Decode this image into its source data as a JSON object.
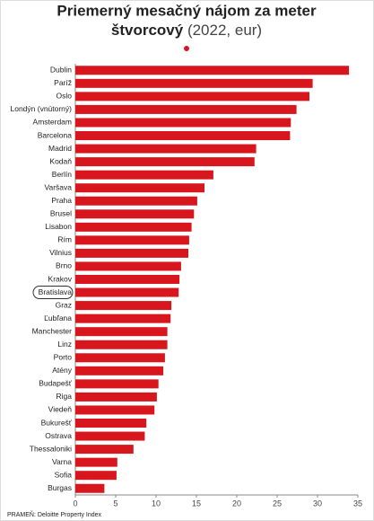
{
  "chart_data": {
    "type": "bar",
    "orientation": "horizontal",
    "title": [
      "Priemerný mesačný nájom za meter",
      "štvorcový"
    ],
    "subtitle": "(2022, eur)",
    "source": "PRAMEŇ: Deloitte Property Index",
    "categories": [
      "Dublin",
      "Paríž",
      "Oslo",
      "Londýn (vnútorný)",
      "Amsterdam",
      "Barcelona",
      "Madrid",
      "Kodaň",
      "Berlín",
      "Varšava",
      "Praha",
      "Brusel",
      "Lisabon",
      "Rím",
      "Vilnius",
      "Brno",
      "Krakov",
      "Bratislava",
      "Graz",
      "Ľubľana",
      "Manchester",
      "Linz",
      "Porto",
      "Atény",
      "Budapešť",
      "Riga",
      "Viedeň",
      "Bukurešť",
      "Ostrava",
      "Thessaloniki",
      "Varna",
      "Sofia",
      "Burgas"
    ],
    "values": [
      33.9,
      29.4,
      29.0,
      27.4,
      26.7,
      26.6,
      22.4,
      22.2,
      17.1,
      16.0,
      15.1,
      14.7,
      14.4,
      14.1,
      14.0,
      13.1,
      12.9,
      12.8,
      11.9,
      11.8,
      11.4,
      11.4,
      11.1,
      10.9,
      10.3,
      10.1,
      9.8,
      8.8,
      8.6,
      7.2,
      5.2,
      5.1,
      3.6
    ],
    "color": "#d7161e",
    "highlighted_category": "Bratislava",
    "xlim": [
      0,
      35
    ],
    "xticks": [
      0,
      5,
      10,
      15,
      20,
      25,
      30,
      35
    ],
    "grid": false
  }
}
